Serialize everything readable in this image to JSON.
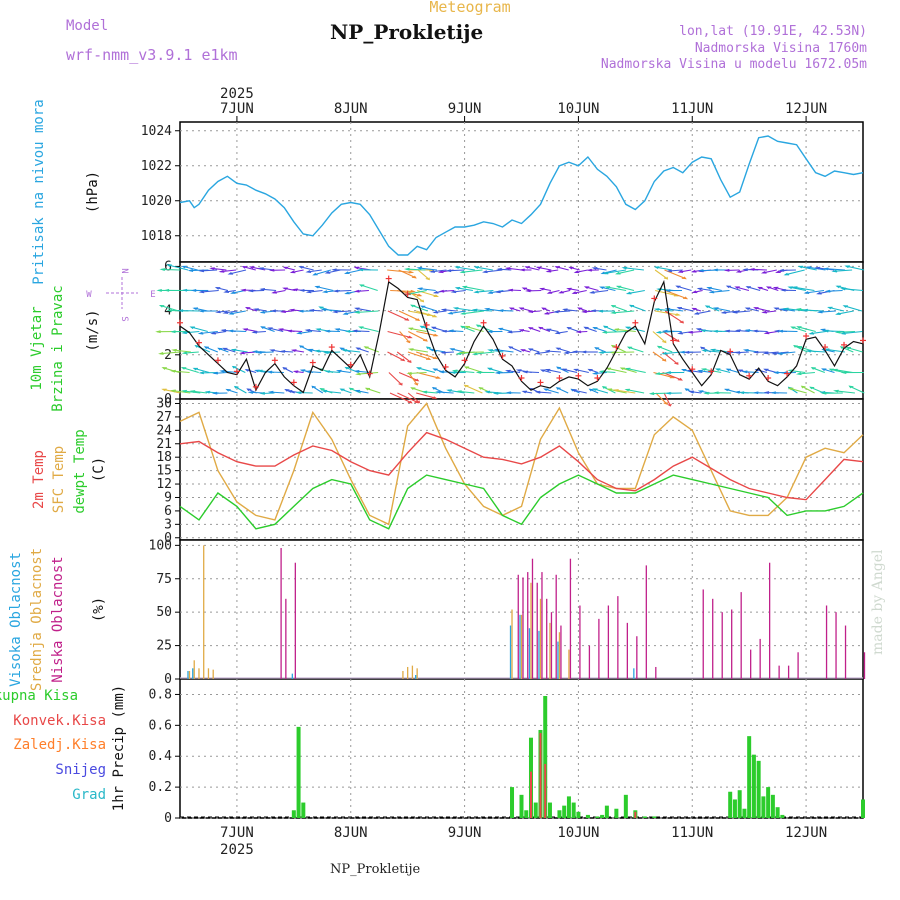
{
  "header": {
    "app_title": "Meteogram",
    "station": "NP_Prokletije",
    "model_label": "Model",
    "model_name": "wrf-nmm_v3.9.1 e1km",
    "coords": "lon,lat (19.91E, 42.53N)",
    "elevation": "Nadmorska Visina 1760m",
    "elevation_model": "Nadmorska Visina u modelu 1672.05m",
    "watermark": "made by Angel",
    "footer_station": "NP_Prokletije"
  },
  "time_axis": {
    "year": "2025",
    "day_labels": [
      "7JUN",
      "8JUN",
      "9JUN",
      "10JUN",
      "11JUN",
      "12JUN"
    ],
    "start": "2025-06-06 12:00",
    "end": "2025-06-12 12:00"
  },
  "colors": {
    "pressure": "#2aa6e0",
    "temp2m": "#e84848",
    "sfc": "#e0aa45",
    "dewpt": "#2ccc2c",
    "high_cloud": "#2aa6e0",
    "mid_cloud": "#e0aa45",
    "low_cloud": "#c0208a",
    "total_precip": "#2ccc2c",
    "conv_precip": "#e84848",
    "frozen_precip": "#ff7f2a",
    "snow": "#4a4ae0",
    "hail": "#2ab8c8",
    "wind_trace": "#111111",
    "wind_marker": "#ee3333"
  },
  "panels": {
    "pressure": {
      "label": "Pritisak na nivou mora",
      "unit": "(hPa)",
      "yticks": [
        "1018",
        "1020",
        "1022",
        "1024"
      ]
    },
    "wind": {
      "label": "10m Vjetar Brzina i Pravac",
      "unit": "(m/s)",
      "yticks": [
        "0",
        "2",
        "4",
        "6"
      ],
      "compass": {
        "n": "N",
        "s": "S",
        "e": "E",
        "w": "W"
      }
    },
    "temp": {
      "label_2m": "2m Temp",
      "label_sfc": "SFC Temp",
      "label_dew": "dewpt Temp",
      "unit": "(C)",
      "yticks": [
        "0",
        "3",
        "6",
        "9",
        "12",
        "15",
        "18",
        "21",
        "24",
        "27",
        "30"
      ]
    },
    "cloud": {
      "label_high": "Visoka Oblacnost",
      "label_mid": "Srednja Oblacnost",
      "label_low": "Niska Oblacnost",
      "unit": "(%)",
      "yticks": [
        "0",
        "25",
        "50",
        "75",
        "100"
      ]
    },
    "precip": {
      "label_total": "Ukupna Kisa",
      "label_conv": "Konvek.Kisa",
      "label_frozen": "Zaledj.Kisa",
      "label_snow": "Snijeg",
      "label_hail": "Grad",
      "unit": "1hr Precip (mm)",
      "yticks": [
        "0",
        "0.2",
        "0.4",
        "0.6",
        "0.8"
      ]
    }
  },
  "chart_data": [
    {
      "type": "line",
      "name": "pressure",
      "x_unit": "hours since 2025-06-06 12:00",
      "ylim": [
        1016.5,
        1024.5
      ],
      "series": [
        {
          "name": "Pritisak na nivou mora",
          "x": [
            0,
            2,
            3,
            4,
            6,
            8,
            10,
            12,
            14,
            16,
            18,
            20,
            22,
            24,
            26,
            28,
            30,
            32,
            34,
            36,
            38,
            40,
            42,
            44,
            46,
            48,
            50,
            52,
            54,
            56,
            58,
            60,
            62,
            64,
            66,
            68,
            70,
            72,
            74,
            76,
            78,
            80,
            82,
            84,
            86,
            88,
            90,
            92,
            94,
            96,
            98,
            100,
            102,
            104,
            106,
            108,
            110,
            112,
            114,
            116,
            118,
            120,
            122,
            124,
            126,
            128,
            130,
            132,
            134,
            136,
            138,
            140,
            142,
            144
          ],
          "values": [
            1019.9,
            1020.0,
            1019.6,
            1019.8,
            1020.6,
            1021.1,
            1021.4,
            1021.0,
            1020.9,
            1020.6,
            1020.4,
            1020.1,
            1019.6,
            1018.8,
            1018.1,
            1018.0,
            1018.6,
            1019.3,
            1019.8,
            1019.9,
            1019.8,
            1019.2,
            1018.3,
            1017.4,
            1016.9,
            1016.9,
            1017.4,
            1017.2,
            1017.9,
            1018.2,
            1018.5,
            1018.5,
            1018.6,
            1018.8,
            1018.7,
            1018.5,
            1018.9,
            1018.7,
            1019.2,
            1019.8,
            1021.0,
            1022.0,
            1022.2,
            1022.0,
            1022.5,
            1021.8,
            1021.4,
            1020.8,
            1019.8,
            1019.5,
            1020.0,
            1021.1,
            1021.7,
            1021.9,
            1021.6,
            1022.2,
            1022.5,
            1022.4,
            1021.2,
            1020.2,
            1020.5,
            1022.1,
            1023.6,
            1023.7,
            1023.4,
            1023.3,
            1023.2,
            1022.4,
            1021.6,
            1021.4,
            1021.7,
            1021.6,
            1021.5,
            1021.6
          ]
        }
      ]
    },
    {
      "type": "line",
      "name": "wind",
      "x_unit": "hours since 2025-06-06 12:00",
      "ylim": [
        0,
        6.2
      ],
      "series": [
        {
          "name": "wind speed",
          "x": [
            0,
            2,
            4,
            6,
            8,
            10,
            12,
            14,
            16,
            18,
            20,
            22,
            24,
            26,
            28,
            30,
            32,
            34,
            36,
            38,
            40,
            42,
            44,
            46,
            48,
            50,
            52,
            54,
            56,
            58,
            60,
            62,
            64,
            66,
            68,
            70,
            72,
            74,
            76,
            78,
            80,
            82,
            84,
            86,
            88,
            90,
            92,
            94,
            96,
            98,
            100,
            102,
            104,
            106,
            108,
            110,
            112,
            114,
            116,
            118,
            120,
            122,
            124,
            126,
            128,
            130,
            132,
            134,
            136,
            138,
            140,
            142,
            144
          ],
          "values": [
            3.3,
            3.0,
            2.4,
            2.0,
            1.6,
            1.2,
            1.1,
            1.8,
            0.4,
            1.2,
            1.6,
            1.0,
            0.6,
            0.3,
            1.5,
            1.3,
            2.2,
            1.8,
            1.4,
            2.0,
            1.0,
            3.0,
            5.3,
            5.0,
            4.6,
            4.5,
            3.2,
            2.0,
            1.3,
            1.0,
            1.6,
            2.6,
            3.3,
            2.7,
            1.8,
            1.5,
            0.8,
            0.4,
            0.6,
            0.5,
            0.8,
            1.0,
            0.9,
            0.6,
            0.8,
            1.4,
            2.2,
            3.0,
            3.3,
            2.5,
            4.4,
            5.3,
            2.5,
            1.8,
            1.2,
            0.6,
            1.1,
            2.2,
            2.0,
            1.1,
            0.9,
            1.4,
            0.8,
            0.6,
            1.0,
            1.5,
            2.7,
            2.8,
            2.2,
            1.5,
            2.3,
            2.6,
            2.5
          ]
        }
      ]
    },
    {
      "type": "line",
      "name": "temperature",
      "x_unit": "hours since 2025-06-06 12:00",
      "ylim": [
        -0.5,
        31
      ],
      "series": [
        {
          "name": "2m Temp",
          "x": [
            0,
            4,
            8,
            12,
            16,
            20,
            24,
            28,
            32,
            36,
            40,
            44,
            48,
            52,
            56,
            60,
            64,
            68,
            72,
            76,
            80,
            84,
            88,
            92,
            96,
            100,
            104,
            108,
            112,
            116,
            120,
            124,
            128,
            132,
            136,
            140,
            144
          ],
          "values": [
            21,
            21.5,
            19,
            17,
            16,
            16,
            18.5,
            20.5,
            19.5,
            17,
            15,
            14,
            19,
            23.5,
            22,
            20,
            18,
            17.5,
            16.5,
            18,
            20.5,
            17,
            13,
            11,
            10.5,
            13,
            16,
            18,
            15.5,
            13,
            11,
            10,
            9,
            8.5,
            13,
            17.5,
            17
          ]
        },
        {
          "name": "SFC Temp",
          "x": [
            0,
            4,
            8,
            12,
            16,
            20,
            24,
            28,
            32,
            36,
            40,
            44,
            48,
            52,
            56,
            60,
            64,
            68,
            72,
            76,
            80,
            84,
            88,
            92,
            96,
            100,
            104,
            108,
            112,
            116,
            120,
            124,
            128,
            132,
            136,
            140,
            144
          ],
          "values": [
            26,
            28,
            15,
            8,
            5,
            4,
            15,
            28,
            22,
            13,
            5,
            3,
            25,
            30,
            20,
            12,
            7,
            5,
            7,
            22,
            29,
            19,
            12,
            11,
            11,
            23,
            27,
            24,
            15,
            6,
            5,
            5,
            9,
            18,
            20,
            19,
            23
          ]
        },
        {
          "name": "dewpt Temp",
          "x": [
            0,
            4,
            8,
            12,
            16,
            20,
            24,
            28,
            32,
            36,
            40,
            44,
            48,
            52,
            56,
            60,
            64,
            68,
            72,
            76,
            80,
            84,
            88,
            92,
            96,
            100,
            104,
            108,
            112,
            116,
            120,
            124,
            128,
            132,
            136,
            140,
            144
          ],
          "values": [
            7,
            4,
            10,
            7,
            2,
            3,
            7,
            11,
            13,
            12,
            4,
            2,
            11,
            14,
            13,
            12,
            11,
            5,
            3,
            9,
            12,
            14,
            12,
            10,
            10,
            12,
            14,
            13,
            12,
            11,
            10,
            9,
            5,
            6,
            6,
            7,
            10
          ]
        }
      ]
    },
    {
      "type": "bar",
      "name": "cloud",
      "x_unit": "hours since 2025-06-06 12:00",
      "ylim": [
        0,
        100
      ],
      "series": [
        {
          "name": "Visoka Oblacnost",
          "x": [
            2,
            3,
            24,
            50,
            70,
            72,
            74,
            76,
            80,
            96
          ],
          "values": [
            6,
            8,
            4,
            3,
            40,
            48,
            38,
            36,
            28,
            8
          ]
        },
        {
          "name": "Srednja Oblacnost",
          "x": [
            2,
            3,
            4,
            5,
            6,
            7,
            47,
            48,
            49,
            50,
            70,
            72,
            74,
            76,
            78,
            80,
            82
          ],
          "values": [
            6,
            14,
            8,
            100,
            8,
            7,
            6,
            9,
            10,
            8,
            52,
            48,
            72,
            60,
            42,
            35,
            22
          ]
        },
        {
          "name": "Niska Oblacnost",
          "x": [
            21,
            22,
            24,
            71,
            72,
            73,
            74,
            75,
            76,
            77,
            78,
            79,
            80,
            82,
            84,
            86,
            88,
            90,
            92,
            94,
            96,
            98,
            100,
            110,
            112,
            114,
            116,
            118,
            120,
            122,
            124,
            126,
            128,
            130,
            136,
            138,
            140,
            144
          ],
          "values": [
            98,
            60,
            87,
            78,
            76,
            80,
            90,
            72,
            80,
            60,
            50,
            78,
            40,
            90,
            55,
            25,
            45,
            55,
            62,
            42,
            32,
            85,
            9,
            67,
            60,
            50,
            52,
            65,
            22,
            30,
            87,
            10,
            10,
            20,
            55,
            50,
            40,
            20
          ]
        }
      ]
    },
    {
      "type": "bar",
      "name": "precip",
      "x_unit": "hours since 2025-06-06 12:00",
      "ylim": [
        0,
        0.9
      ],
      "series": [
        {
          "name": "Ukupna Kisa",
          "x": [
            24,
            25,
            26,
            70,
            72,
            73,
            74,
            75,
            76,
            77,
            78,
            80,
            81,
            82,
            83,
            84,
            86,
            88,
            89,
            90,
            92,
            94,
            96,
            98,
            100,
            116,
            117,
            118,
            119,
            120,
            121,
            122,
            123,
            124,
            125,
            126,
            127,
            144
          ],
          "values": [
            0.05,
            0.59,
            0.1,
            0.2,
            0.15,
            0.05,
            0.52,
            0.1,
            0.57,
            0.79,
            0.1,
            0.05,
            0.08,
            0.14,
            0.1,
            0.04,
            0.02,
            0.01,
            0.02,
            0.08,
            0.06,
            0.15,
            0.05,
            0.01,
            0.01,
            0.17,
            0.12,
            0.18,
            0.06,
            0.53,
            0.41,
            0.37,
            0.14,
            0.2,
            0.15,
            0.07,
            0.02,
            0.12
          ]
        },
        {
          "name": "Konvek.Kisa",
          "x": [
            74,
            76,
            77,
            96
          ],
          "values": [
            0.3,
            0.55,
            0.35,
            0.04
          ]
        }
      ]
    }
  ]
}
